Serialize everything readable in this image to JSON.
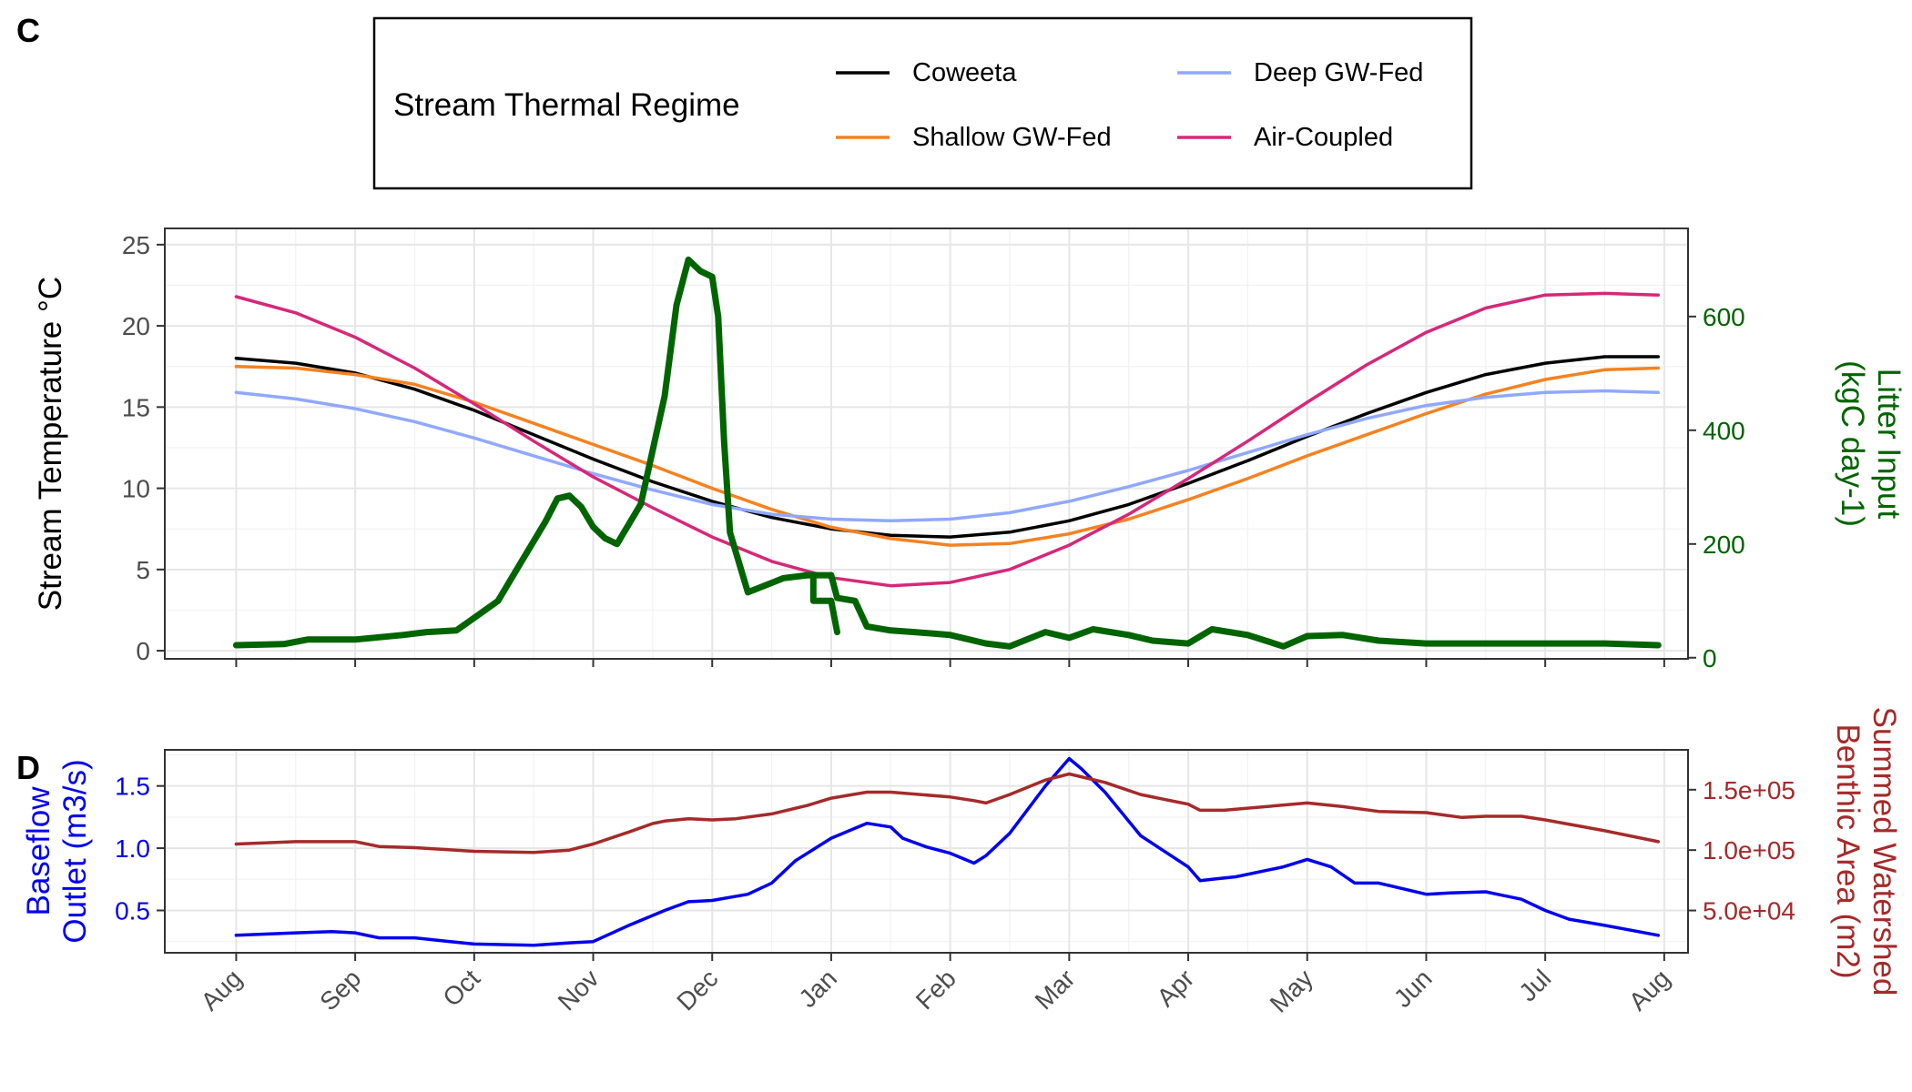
{
  "panel_labels": {
    "c": "C",
    "d": "D"
  },
  "legend": {
    "title": "Stream Thermal Regime",
    "entries": [
      {
        "label": "Coweeta",
        "color": "#000000"
      },
      {
        "label": "Shallow GW-Fed",
        "color": "#F58220"
      },
      {
        "label": "Deep GW-Fed",
        "color": "#91A8FF"
      },
      {
        "label": "Air-Coupled",
        "color": "#D6287A"
      }
    ]
  },
  "colors": {
    "litter": "#006400",
    "baseflow": "#0000EE",
    "benthic": "#A52A2A",
    "grid_major": "#E6E6E6",
    "grid_minor": "#F2F2F2",
    "axis_text": "#4D4D4D"
  },
  "month_ticks": [
    "Aug",
    "Sep",
    "Oct",
    "Nov",
    "Dec",
    "Jan",
    "Feb",
    "Mar",
    "Apr",
    "May",
    "Jun",
    "Jul",
    "Aug"
  ],
  "chart_data": [
    {
      "type": "line",
      "panel": "C",
      "title": "",
      "xlabel": "",
      "ylabel": "Stream Temperature °C",
      "ylabel_right": "Litter Input\n(kgC day-1)",
      "x_unit": "months from 1 Aug (0 = Aug, 12 = Aug next year)",
      "xlim": [
        -0.6,
        12.2
      ],
      "ylim": [
        -0.5,
        26
      ],
      "yticks": [
        0,
        5,
        10,
        15,
        20,
        25
      ],
      "ylim_right": [
        -2,
        755
      ],
      "yticks_right": [
        0,
        200,
        400,
        600
      ],
      "grid": true,
      "legend_position": "top",
      "series": [
        {
          "name": "Coweeta",
          "axis": "left",
          "color": "#000000",
          "x": [
            0,
            0.5,
            1,
            1.5,
            2,
            2.5,
            3,
            3.5,
            4,
            4.5,
            5,
            5.5,
            6,
            6.5,
            7,
            7.5,
            8,
            8.5,
            9,
            9.5,
            10,
            10.5,
            11,
            11.5,
            11.95
          ],
          "y": [
            18,
            17.7,
            17.1,
            16.1,
            14.8,
            13.3,
            11.8,
            10.4,
            9.2,
            8.2,
            7.5,
            7.1,
            7.0,
            7.3,
            8.0,
            9.0,
            10.3,
            11.7,
            13.2,
            14.6,
            15.9,
            17.0,
            17.7,
            18.1,
            18.1
          ]
        },
        {
          "name": "Shallow GW-Fed",
          "axis": "left",
          "color": "#F58220",
          "x": [
            0,
            0.5,
            1,
            1.5,
            2,
            2.5,
            3,
            3.5,
            4,
            4.5,
            5,
            5.5,
            6,
            6.5,
            7,
            7.5,
            8,
            8.5,
            9,
            9.5,
            10,
            10.5,
            11,
            11.5,
            11.95
          ],
          "y": [
            17.5,
            17.4,
            17.0,
            16.4,
            15.3,
            14.0,
            12.7,
            11.4,
            10.0,
            8.7,
            7.6,
            6.9,
            6.5,
            6.6,
            7.2,
            8.1,
            9.3,
            10.6,
            12.0,
            13.3,
            14.6,
            15.8,
            16.7,
            17.3,
            17.4
          ]
        },
        {
          "name": "Deep GW-Fed",
          "axis": "left",
          "color": "#91A8FF",
          "x": [
            0,
            0.5,
            1,
            1.5,
            2,
            2.5,
            3,
            3.5,
            4,
            4.5,
            5,
            5.5,
            6,
            6.5,
            7,
            7.5,
            8,
            8.5,
            9,
            9.5,
            10,
            10.5,
            11,
            11.5,
            11.95
          ],
          "y": [
            15.9,
            15.5,
            14.9,
            14.1,
            13.1,
            12.0,
            10.9,
            9.9,
            9.0,
            8.4,
            8.1,
            8.0,
            8.1,
            8.5,
            9.2,
            10.1,
            11.1,
            12.2,
            13.3,
            14.3,
            15.1,
            15.6,
            15.9,
            16.0,
            15.9
          ]
        },
        {
          "name": "Air-Coupled",
          "axis": "left",
          "color": "#D6287A",
          "x": [
            0,
            0.5,
            1,
            1.5,
            2,
            2.5,
            3,
            3.5,
            4,
            4.5,
            5,
            5.5,
            6,
            6.5,
            7,
            7.5,
            8,
            8.5,
            9,
            9.5,
            10,
            10.5,
            11,
            11.5,
            11.95
          ],
          "y": [
            21.8,
            20.8,
            19.3,
            17.4,
            15.2,
            12.9,
            10.7,
            8.8,
            7.0,
            5.5,
            4.5,
            4.0,
            4.2,
            5.0,
            6.5,
            8.4,
            10.6,
            12.9,
            15.3,
            17.6,
            19.6,
            21.1,
            21.9,
            22.0,
            21.9
          ]
        },
        {
          "name": "Litter Input",
          "axis": "right",
          "color": "#006400",
          "x": [
            0,
            0.4,
            0.6,
            1,
            1.4,
            1.6,
            1.85,
            2,
            2.2,
            2.4,
            2.6,
            2.7,
            2.8,
            2.9,
            3,
            3.1,
            3.2,
            3.4,
            3.6,
            3.7,
            3.8,
            3.9,
            4,
            4.05,
            4.1,
            4.15,
            4.3,
            4.6,
            4.8,
            5,
            5.05,
            5.2,
            5.3,
            5.5,
            5.7,
            6,
            6.3,
            6.5,
            6.8,
            7,
            7.2,
            7.5,
            7.7,
            8,
            8.2,
            8.5,
            8.8,
            9,
            9.3,
            9.6,
            10,
            10.5,
            11,
            11.5,
            11.95
          ],
          "y": [
            22,
            24,
            32,
            32,
            40,
            45,
            48,
            70,
            100,
            170,
            240,
            280,
            285,
            265,
            230,
            210,
            200,
            270,
            460,
            620,
            700,
            680,
            670,
            600,
            380,
            220,
            115,
            140,
            145,
            145,
            105,
            100,
            55,
            48,
            45,
            40,
            25,
            20,
            45,
            35,
            50,
            40,
            30,
            25,
            50,
            40,
            20,
            38,
            40,
            30,
            25,
            25,
            25,
            25,
            22
          ]
        },
        {
          "name": "Litter Input step",
          "axis": "right",
          "color": "#006400",
          "step": true,
          "x": [
            4.8,
            4.85,
            4.85,
            5.0,
            5.0,
            5.05
          ],
          "y": [
            145,
            145,
            100,
            100,
            100,
            45
          ]
        }
      ]
    },
    {
      "type": "line",
      "panel": "D",
      "title": "",
      "xlabel": "",
      "ylabel": "Baseflow\nOutlet (m3/s)",
      "ylabel_right": "Summed Watershed\nBenthic Area (m2)",
      "x_unit": "months from 1 Aug (0 = Aug, 12 = Aug next year)",
      "xlim": [
        -0.6,
        12.2
      ],
      "ylim": [
        0.16,
        1.79
      ],
      "yticks": [
        0.5,
        1.0,
        1.5
      ],
      "ytick_labels": [
        "0.5",
        "1.0",
        "1.5"
      ],
      "ylim_right": [
        15000,
        183000
      ],
      "yticks_right": [
        50000,
        100000,
        150000
      ],
      "ytick_labels_right": [
        "5.0e+04",
        "1.0e+05",
        "1.5e+05"
      ],
      "grid": true,
      "series": [
        {
          "name": "Baseflow Outlet",
          "axis": "left",
          "color": "#0000EE",
          "x": [
            0,
            0.5,
            0.8,
            1,
            1.2,
            1.5,
            1.8,
            2,
            2.5,
            2.8,
            3,
            3.3,
            3.6,
            3.8,
            4,
            4.3,
            4.5,
            4.7,
            5,
            5.3,
            5.5,
            5.6,
            5.8,
            6,
            6.2,
            6.3,
            6.5,
            6.8,
            7,
            7.1,
            7.3,
            7.6,
            8,
            8.1,
            8.2,
            8.4,
            8.8,
            9,
            9.2,
            9.4,
            9.6,
            10,
            10.2,
            10.5,
            10.8,
            11,
            11.2,
            11.5,
            11.95
          ],
          "y": [
            0.3,
            0.32,
            0.33,
            0.32,
            0.28,
            0.28,
            0.25,
            0.23,
            0.22,
            0.24,
            0.25,
            0.38,
            0.5,
            0.57,
            0.58,
            0.63,
            0.72,
            0.9,
            1.08,
            1.2,
            1.17,
            1.08,
            1.01,
            0.96,
            0.88,
            0.94,
            1.12,
            1.5,
            1.72,
            1.64,
            1.45,
            1.1,
            0.85,
            0.74,
            0.75,
            0.77,
            0.85,
            0.91,
            0.85,
            0.72,
            0.72,
            0.63,
            0.64,
            0.65,
            0.59,
            0.5,
            0.43,
            0.38,
            0.3
          ]
        },
        {
          "name": "Summed Watershed Benthic Area",
          "axis": "right",
          "color": "#A52A2A",
          "x": [
            0,
            0.5,
            1,
            1.2,
            1.5,
            2,
            2.5,
            2.8,
            3,
            3.3,
            3.5,
            3.6,
            3.8,
            4,
            4.2,
            4.5,
            4.8,
            5,
            5.3,
            5.5,
            6,
            6.2,
            6.3,
            6.5,
            6.8,
            7,
            7.3,
            7.6,
            7.9,
            8,
            8.1,
            8.3,
            9,
            9.3,
            9.6,
            10,
            10.3,
            10.5,
            10.8,
            11,
            11.5,
            11.95
          ],
          "y": [
            105000,
            107000,
            107000,
            103000,
            102000,
            99000,
            98000,
            100000,
            105000,
            115000,
            122000,
            124000,
            126000,
            125000,
            126000,
            130000,
            137000,
            143000,
            148000,
            148000,
            144000,
            141000,
            139000,
            146000,
            158000,
            163000,
            156000,
            146000,
            140000,
            138000,
            133000,
            133000,
            139000,
            136000,
            132000,
            131000,
            127000,
            128000,
            128000,
            125000,
            116000,
            107000
          ]
        }
      ]
    }
  ]
}
